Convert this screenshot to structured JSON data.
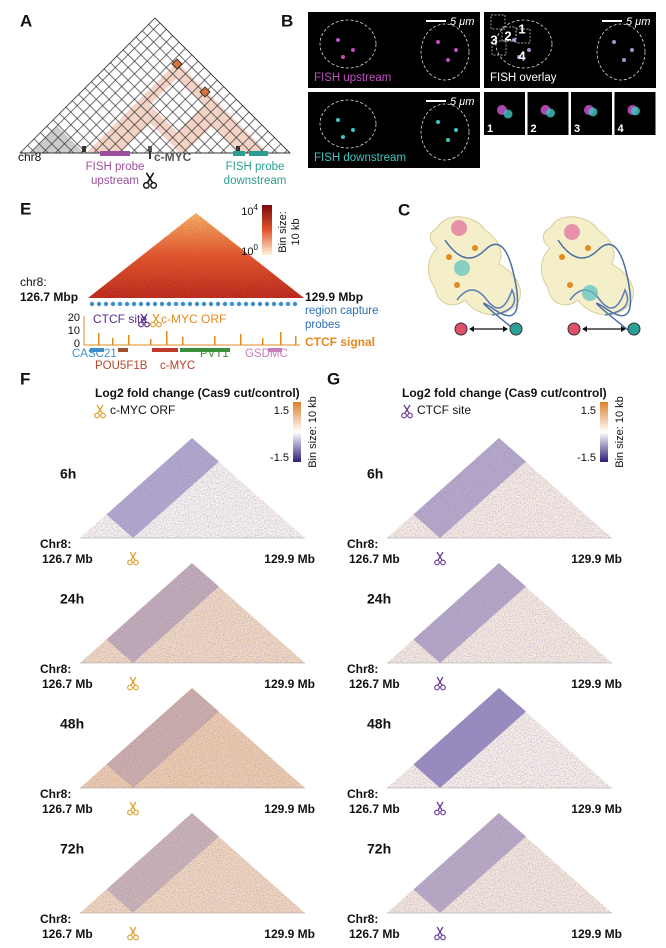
{
  "A": {
    "label": "A",
    "chrom": "chr8",
    "probe_up": [
      "FISH probe",
      "upstream"
    ],
    "gene": "c-MYC",
    "probe_down": [
      "FISH probe",
      "downstream"
    ]
  },
  "B": {
    "label": "B",
    "scale_bar": "5 μm",
    "images": [
      "FISH upstream",
      "FISH overlay",
      "FISH downstream"
    ],
    "overlay_boxes": [
      "1",
      "2",
      "3",
      "4"
    ],
    "insets": [
      "1",
      "2",
      "3",
      "4"
    ]
  },
  "E": {
    "label": "E",
    "colorbar": {
      "max": {
        "base": "10",
        "exp": "4"
      },
      "min": {
        "base": "10",
        "exp": "0"
      }
    },
    "bin_size": [
      "Bin size:",
      "10 kb"
    ],
    "chrom": "chr8:",
    "start": "126.7 Mbp",
    "end": "129.9 Mbp",
    "probes": [
      "region capture",
      "probes"
    ],
    "ctcf_site": "CTCF site",
    "orf": "c-MYC ORF",
    "signal_ticks": [
      20,
      10,
      0
    ],
    "signal": "CTCF signal",
    "genes": [
      "CASC21",
      "POU5F1B",
      "c-MYC",
      "PVT1",
      "GSDMC"
    ]
  },
  "C": {
    "label": "C"
  },
  "F": {
    "label": "F",
    "title": "Log2 fold change (Cas9 cut/control)",
    "cut": "c-MYC ORF",
    "colorbar": [
      1.5,
      -1.5
    ],
    "bin_size": "Bin size: 10 kb",
    "times": [
      "6h",
      "24h",
      "48h",
      "72h"
    ],
    "chrom": "Chr8:",
    "start": "126.7 Mb",
    "end": "129.9 Mb"
  },
  "G": {
    "label": "G",
    "title": "Log2 fold change (Cas9 cut/control)",
    "cut": "CTCF site",
    "colorbar": [
      1.5,
      -1.5
    ],
    "bin_size": "Bin size: 10 kb",
    "times": [
      "6h",
      "24h",
      "48h",
      "72h"
    ],
    "chrom": "Chr8:",
    "start": "126.7 Mb",
    "end": "129.9 Mb"
  }
}
